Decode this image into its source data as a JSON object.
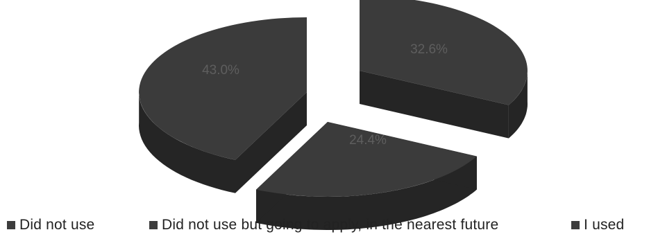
{
  "chart_data": {
    "type": "pie",
    "style": "3d-exploded",
    "categories": [
      "Did not use",
      "Did not use but going to apply, in the nearest future",
      "I used"
    ],
    "values": [
      43.0,
      24.4,
      32.6
    ],
    "data_labels": [
      "43.0%",
      "24.4%",
      "32.6%"
    ],
    "legend_position": "bottom",
    "colors": {
      "top": "#3b3b3b",
      "side": "#252525",
      "swatch": "#3d3d3d"
    }
  }
}
